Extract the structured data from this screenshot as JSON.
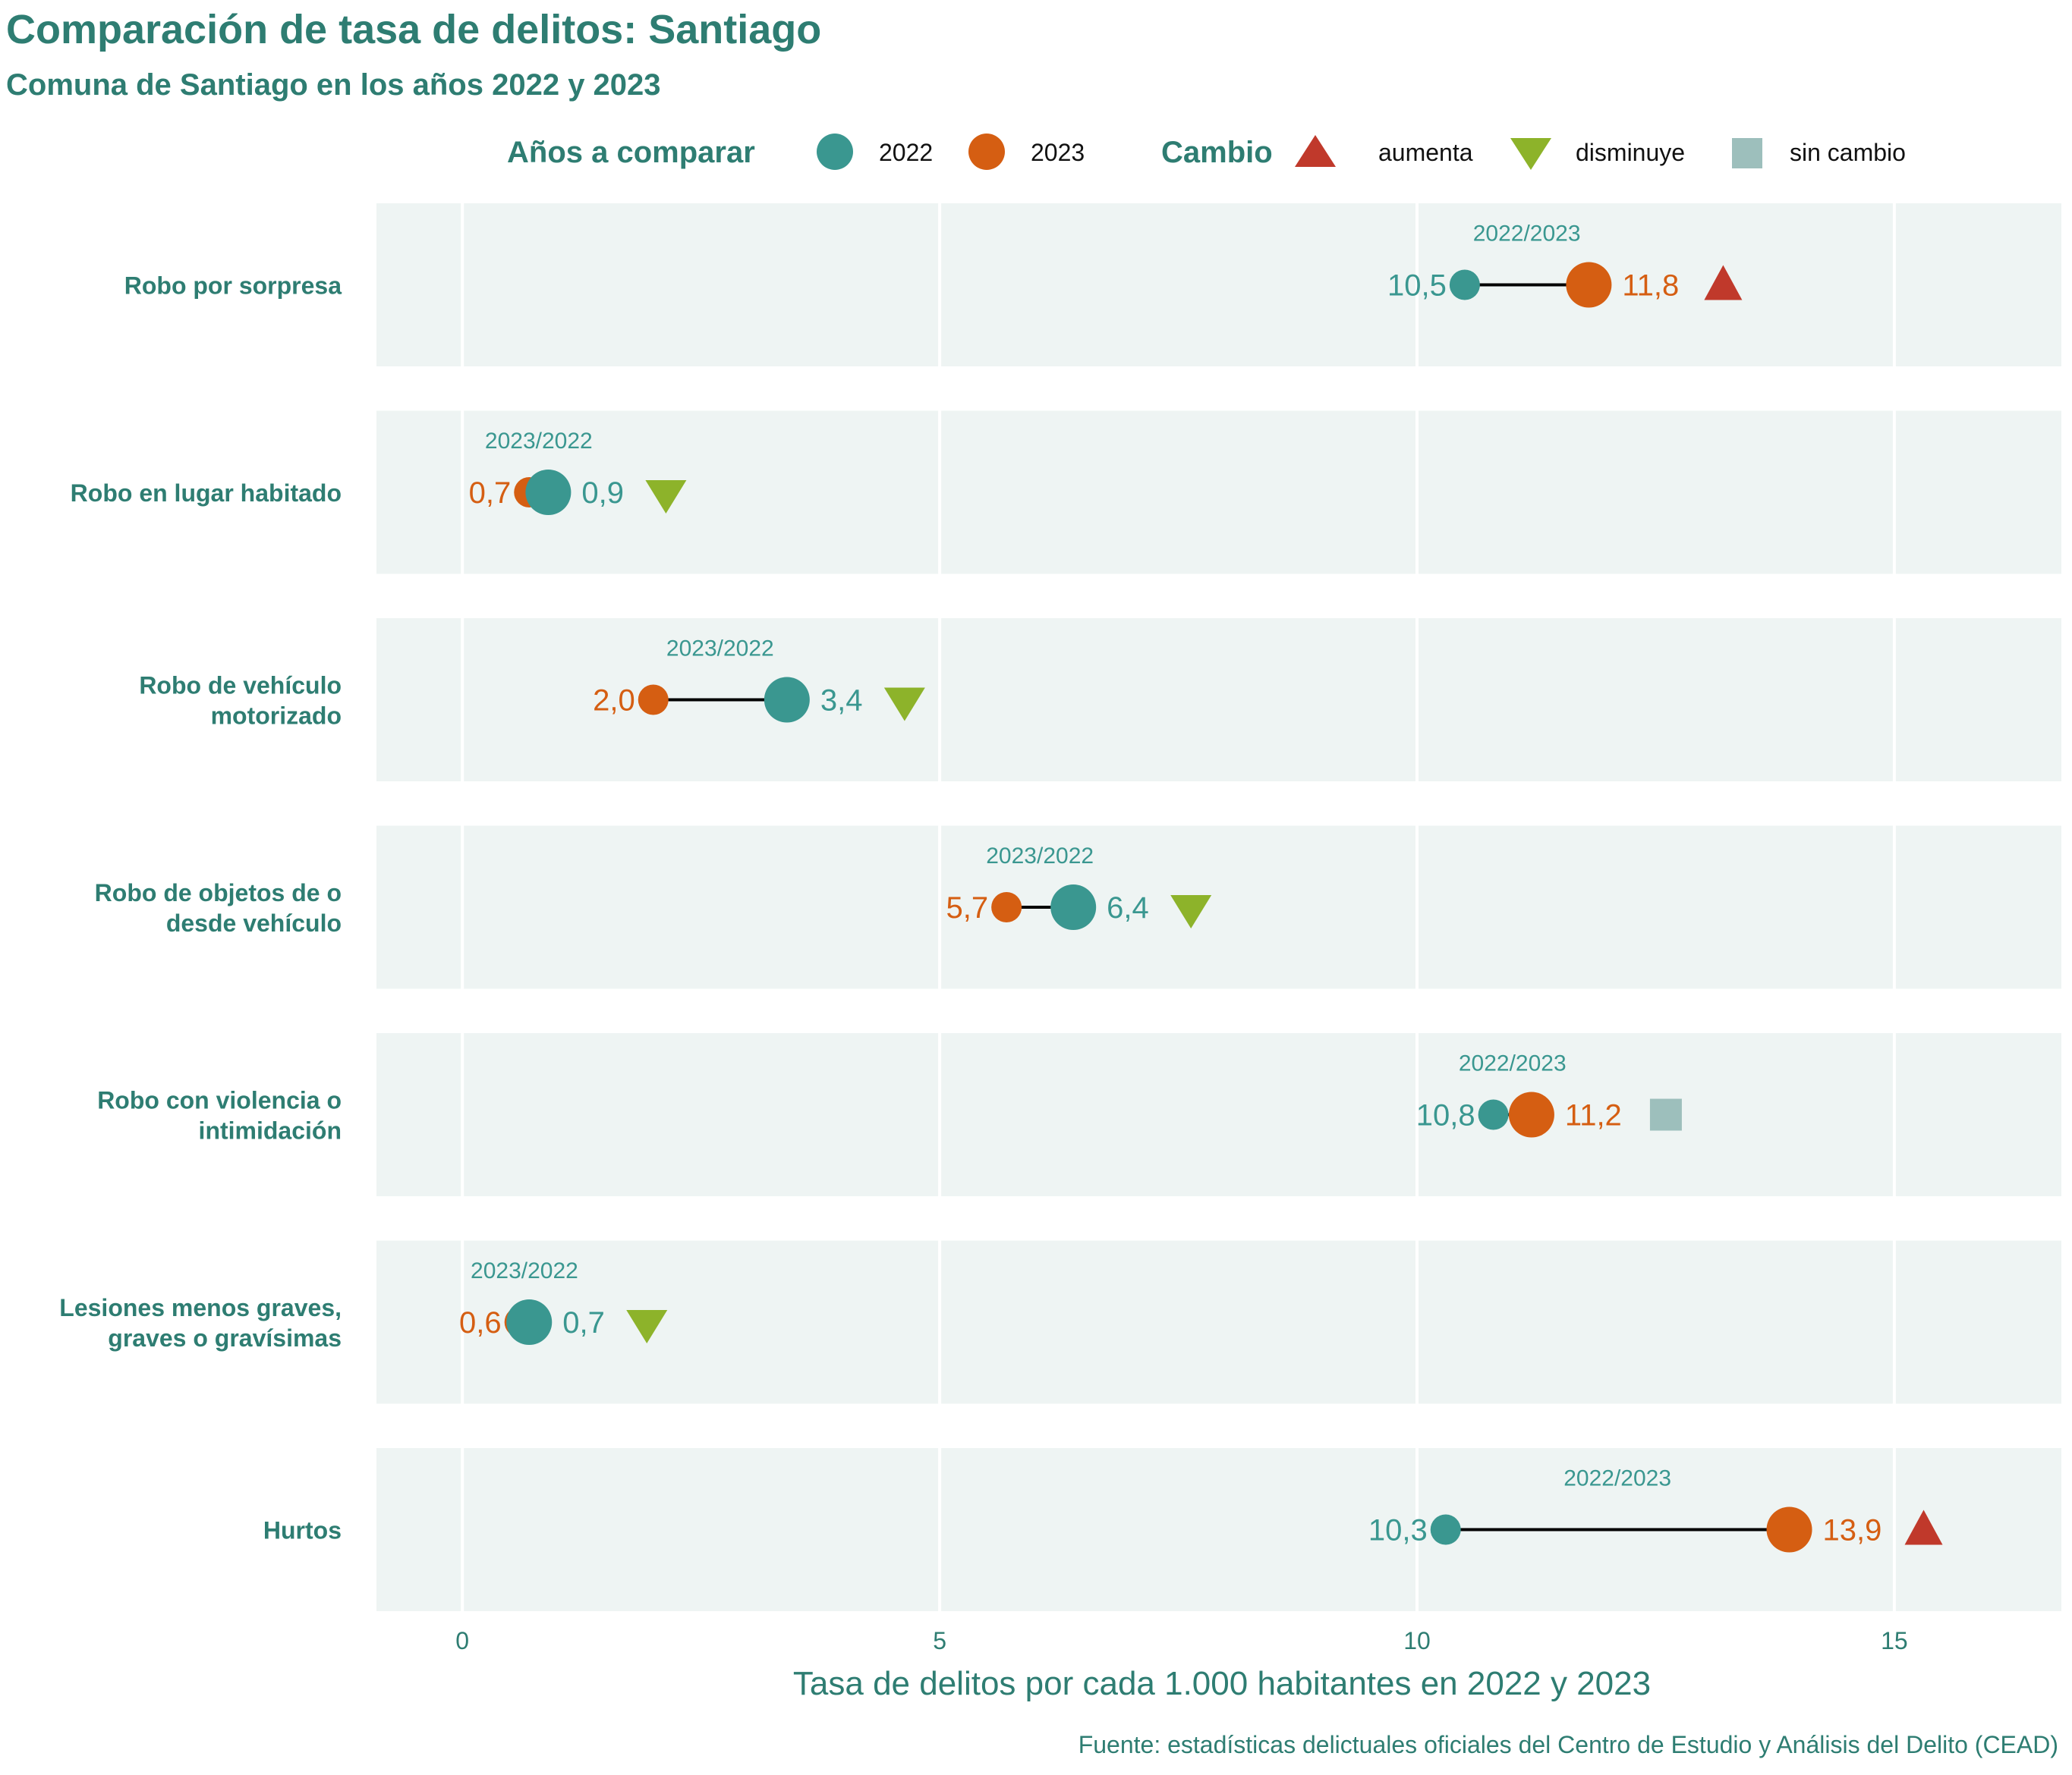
{
  "title": "Comparación de tasa de delitos: Santiago",
  "subtitle": "Comuna de Santiago en los años 2022 y 2023",
  "legend": {
    "years_title": "Años a comparar",
    "years": [
      {
        "label": "2022",
        "color": "#3a9790"
      },
      {
        "label": "2023",
        "color": "#d55e12"
      }
    ],
    "change_title": "Cambio",
    "changes": [
      {
        "label": "aumenta",
        "color": "#c0392b",
        "icon": "triangle-up-icon"
      },
      {
        "label": "disminuye",
        "color": "#8db32a",
        "icon": "triangle-down-icon"
      },
      {
        "label": "sin cambio",
        "color": "#9dbfbc",
        "icon": "square-icon"
      }
    ]
  },
  "colors": {
    "y2022": "#3a9790",
    "y2023": "#d55e12",
    "up": "#c0392b",
    "down": "#8db32a",
    "same": "#9dbfbc",
    "panel": "#eef4f3",
    "text": "#2e7d72"
  },
  "chart_data": {
    "type": "dumbbell",
    "xlabel": "Tasa de delitos por cada 1.000 habitantes en 2022 y 2023",
    "xlim": [
      -0.9,
      16.75
    ],
    "xticks": [
      0,
      5,
      10,
      15
    ],
    "grid": true,
    "series": [
      {
        "name": "2022"
      },
      {
        "name": "2023"
      }
    ],
    "categories": [
      {
        "label": [
          "Robo por sorpresa"
        ],
        "v2022": 10.5,
        "v2023": 11.8,
        "l2022": "10,5",
        "l2023": "11,8",
        "order": "2022/2023",
        "change": "aumenta"
      },
      {
        "label": [
          "Robo en lugar habitado"
        ],
        "v2022": 0.9,
        "v2023": 0.7,
        "l2022": "0,9",
        "l2023": "0,7",
        "order": "2023/2022",
        "change": "disminuye"
      },
      {
        "label": [
          "Robo de vehículo",
          "motorizado"
        ],
        "v2022": 3.4,
        "v2023": 2.0,
        "l2022": "3,4",
        "l2023": "2,0",
        "order": "2023/2022",
        "change": "disminuye"
      },
      {
        "label": [
          "Robo de objetos de o",
          "desde vehículo"
        ],
        "v2022": 6.4,
        "v2023": 5.7,
        "l2022": "6,4",
        "l2023": "5,7",
        "order": "2023/2022",
        "change": "disminuye"
      },
      {
        "label": [
          "Robo con violencia o",
          "intimidación"
        ],
        "v2022": 10.8,
        "v2023": 11.2,
        "l2022": "10,8",
        "l2023": "11,2",
        "order": "2022/2023",
        "change": "sin cambio"
      },
      {
        "label": [
          "Lesiones menos graves,",
          "graves o gravísimas"
        ],
        "v2022": 0.7,
        "v2023": 0.6,
        "l2022": "0,7",
        "l2023": "0,6",
        "order": "2023/2022",
        "change": "disminuye"
      },
      {
        "label": [
          "Hurtos"
        ],
        "v2022": 10.3,
        "v2023": 13.9,
        "l2022": "10,3",
        "l2023": "13,9",
        "order": "2022/2023",
        "change": "aumenta"
      }
    ]
  },
  "caption": "Fuente: estadísticas delictuales oficiales del Centro de Estudio y Análisis del Delito (CEAD)"
}
